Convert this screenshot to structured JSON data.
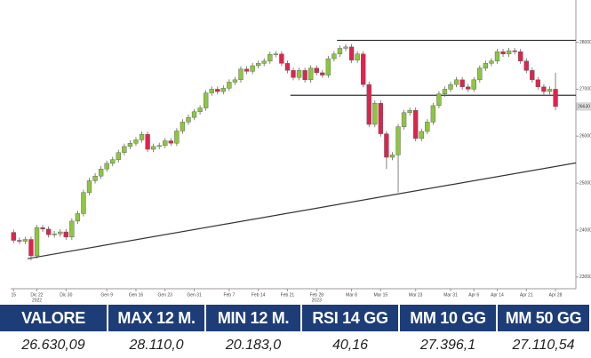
{
  "chart_data": {
    "type": "candlestick",
    "up_color": "#8dc63f",
    "down_color": "#e0234e",
    "x": [
      0,
      1,
      2,
      3,
      4,
      5,
      6,
      7,
      8,
      9,
      10,
      11,
      12,
      13,
      14,
      15,
      16,
      17,
      18,
      19,
      20,
      21,
      22,
      23,
      24,
      25,
      26,
      27,
      28,
      29,
      30,
      31,
      32,
      33,
      34,
      35,
      36,
      37,
      38,
      39,
      40,
      41,
      42,
      43,
      44,
      45,
      46,
      47,
      48,
      49,
      50,
      51,
      52,
      53,
      54,
      55,
      56,
      57,
      58,
      59,
      60,
      61,
      62,
      63,
      64,
      65,
      66,
      67,
      68,
      69,
      70,
      71,
      72,
      73,
      74,
      75,
      76,
      77,
      78,
      79,
      80,
      81,
      82,
      83,
      84,
      85,
      86,
      87,
      88,
      89,
      90,
      91,
      92,
      93
    ],
    "open": [
      23950,
      23780,
      23760,
      23800,
      23450,
      24050,
      24020,
      23900,
      23920,
      23960,
      23850,
      24190,
      24350,
      24800,
      25050,
      25150,
      25300,
      25420,
      25500,
      25650,
      25780,
      25850,
      25920,
      26040,
      25720,
      25780,
      25800,
      25900,
      25850,
      26110,
      26300,
      26400,
      26520,
      26600,
      26920,
      27000,
      26950,
      27020,
      27150,
      27200,
      27430,
      27380,
      27500,
      27550,
      27600,
      27740,
      27750,
      27550,
      27400,
      27250,
      27400,
      27200,
      27450,
      27350,
      27300,
      27650,
      27750,
      27870,
      27900,
      27620,
      27750,
      27100,
      26250,
      26700,
      26050,
      25550,
      25600,
      26200,
      26500,
      26550,
      25950,
      26100,
      26300,
      26650,
      26900,
      27000,
      27100,
      27200,
      27050,
      27000,
      27200,
      27450,
      27550,
      27600,
      27800,
      27750,
      27820,
      27800,
      27600,
      27400,
      27200,
      27050,
      26950,
      27000
    ],
    "high": [
      24010,
      23840,
      23860,
      23860,
      24110,
      24110,
      24080,
      23980,
      24020,
      24020,
      24250,
      24410,
      24860,
      25110,
      25210,
      25360,
      25480,
      25560,
      25710,
      25840,
      25910,
      25980,
      26100,
      26100,
      25840,
      25860,
      25960,
      25960,
      26170,
      26360,
      26460,
      26580,
      26660,
      26980,
      27060,
      27060,
      27080,
      27210,
      27260,
      27490,
      27490,
      27560,
      27610,
      27660,
      27800,
      27810,
      27810,
      27610,
      27460,
      27460,
      27460,
      27510,
      27510,
      27410,
      27710,
      27810,
      27930,
      27960,
      27960,
      27810,
      27810,
      27160,
      26760,
      26760,
      26110,
      25660,
      26260,
      26560,
      26610,
      26610,
      26160,
      26360,
      26710,
      26960,
      27060,
      27160,
      27260,
      27260,
      27110,
      27260,
      27510,
      27610,
      27660,
      27860,
      27860,
      27880,
      27880,
      27860,
      27660,
      27460,
      27260,
      27110,
      27060,
      27350
    ],
    "low": [
      23720,
      23700,
      23700,
      23350,
      23390,
      23960,
      23840,
      23840,
      23860,
      23790,
      23790,
      24130,
      24290,
      24740,
      24990,
      25090,
      25240,
      25360,
      25440,
      25590,
      25720,
      25790,
      25860,
      25660,
      25660,
      25720,
      25740,
      25790,
      25790,
      26050,
      26240,
      26340,
      26460,
      26540,
      26860,
      26890,
      26890,
      26960,
      27090,
      27140,
      27320,
      27320,
      27440,
      27490,
      27540,
      27680,
      27490,
      27340,
      27190,
      27190,
      27140,
      27140,
      27290,
      27240,
      27240,
      27590,
      27690,
      27810,
      27560,
      27560,
      27040,
      26190,
      26190,
      25990,
      25300,
      25490,
      24800,
      26140,
      26440,
      25890,
      25890,
      26040,
      26240,
      26590,
      26840,
      26940,
      27040,
      26990,
      26940,
      26940,
      27140,
      27390,
      27490,
      27540,
      27690,
      27690,
      27740,
      27540,
      27340,
      27140,
      26990,
      26890,
      26890,
      26550
    ],
    "close": [
      23780,
      23760,
      23800,
      23450,
      24050,
      24020,
      23900,
      23920,
      23960,
      23850,
      24190,
      24350,
      24800,
      25050,
      25150,
      25300,
      25420,
      25500,
      25650,
      25780,
      25850,
      25920,
      26040,
      25720,
      25780,
      25800,
      25900,
      25850,
      26110,
      26300,
      26400,
      26520,
      26600,
      26920,
      27000,
      26950,
      27020,
      27150,
      27200,
      27430,
      27380,
      27500,
      27550,
      27600,
      27740,
      27750,
      27550,
      27400,
      27250,
      27400,
      27200,
      27450,
      27350,
      27300,
      27650,
      27750,
      27870,
      27900,
      27620,
      27750,
      27100,
      26250,
      26700,
      26050,
      25550,
      25600,
      26200,
      26500,
      26550,
      25950,
      26100,
      26300,
      26650,
      26900,
      27000,
      27100,
      27200,
      27050,
      27000,
      27200,
      27450,
      27550,
      27600,
      27800,
      27750,
      27820,
      27800,
      27600,
      27400,
      27200,
      27050,
      26950,
      27000,
      26630
    ],
    "lines": [
      {
        "x": [
          2.4,
          96.5
        ],
        "values": [
          23390,
          25430
        ]
      },
      {
        "x": [
          55.5,
          96.5
        ],
        "values": [
          28040,
          28040
        ]
      },
      {
        "x": [
          47.5,
          96.5
        ],
        "values": [
          26870,
          26870
        ]
      }
    ],
    "xlim": [
      -0.5,
      96.5
    ],
    "ylim": [
      22750,
      28900
    ],
    "yticks": [
      23000,
      24000,
      25000,
      26000,
      27000,
      28000
    ],
    "xticks": [
      {
        "value": 0,
        "label": "15"
      },
      {
        "value": 4,
        "label": "Dic 22"
      },
      {
        "value": 9,
        "label": "Dic 30"
      },
      {
        "value": 16,
        "label": "Gen 9"
      },
      {
        "value": 21,
        "label": "Gen 16"
      },
      {
        "value": 26,
        "label": "Gen 23"
      },
      {
        "value": 31,
        "label": "Gen 31"
      },
      {
        "value": 37,
        "label": "Feb 7"
      },
      {
        "value": 42,
        "label": "Feb 14"
      },
      {
        "value": 47,
        "label": "Feb 21"
      },
      {
        "value": 52,
        "label": "Feb 28"
      },
      {
        "value": 58,
        "label": "Mar 8"
      },
      {
        "value": 63,
        "label": "Mar 15"
      },
      {
        "value": 69,
        "label": "Mar 23"
      },
      {
        "value": 75,
        "label": "Mar 31"
      },
      {
        "value": 79,
        "label": "Apr 6"
      },
      {
        "value": 83,
        "label": "Apr 14"
      },
      {
        "value": 88,
        "label": "Apr 21"
      },
      {
        "value": 93,
        "label": "Apr 28"
      }
    ],
    "x_year_labels": [
      {
        "value": 4,
        "label": "2022"
      },
      {
        "value": 52,
        "label": "2023"
      }
    ]
  },
  "table": {
    "header": [
      "VALORE",
      "MAX 12 M.",
      "MIN 12 M.",
      "RSI 14 GG",
      "MM 10 GG",
      "MM 50 GG"
    ],
    "rows": [
      [
        "26.630,09",
        "28.110,0",
        "20.183,0",
        "40,16",
        "27.396,1",
        "27.110,54"
      ]
    ]
  }
}
